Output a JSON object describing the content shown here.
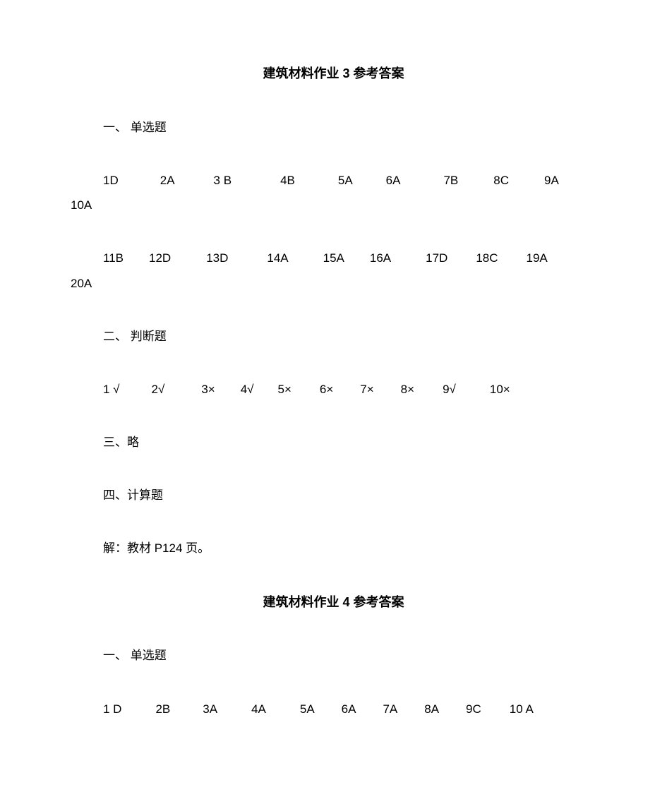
{
  "doc": {
    "title1": "建筑材料作业 3 参考答案",
    "section1_header": "一、 单选题",
    "row1a": [
      "1D",
      "2A",
      "3 B",
      "4B",
      "5A",
      "6A",
      "7B",
      "8C",
      "9A"
    ],
    "row1a_wrap": "10A",
    "row1b": [
      "11B",
      "12D",
      "13D",
      "14A",
      "15A",
      "16A",
      "17D",
      "18C",
      "19A"
    ],
    "row1b_wrap": "20A",
    "section2_header": "二、 判断题",
    "row2": [
      "1 √",
      "2√",
      "3×",
      "4√",
      "5×",
      "6×",
      "7×",
      "8×",
      "9√",
      "10×"
    ],
    "section3": "三、略",
    "section4_header": "四、计算题",
    "section4_text": "解：教材 P124 页。",
    "title2": "建筑材料作业 4 参考答案",
    "section5_header": "一、 单选题",
    "row5": [
      "1 D",
      "2B",
      "3A",
      "4A",
      "5A",
      "6A",
      "7A",
      "8A",
      "9C",
      "10 A"
    ]
  },
  "layout": {
    "gaps_row1a": [
      0,
      59,
      55,
      69,
      61,
      47,
      61,
      50,
      50
    ],
    "gaps_row1b": [
      0,
      36,
      50,
      55,
      49,
      36,
      49,
      40,
      40
    ],
    "gaps_row2": [
      0,
      45,
      52,
      36,
      34,
      40,
      38,
      38,
      40,
      48
    ],
    "gaps_row5": [
      0,
      48,
      46,
      48,
      48,
      38,
      38,
      38,
      38,
      40
    ]
  }
}
